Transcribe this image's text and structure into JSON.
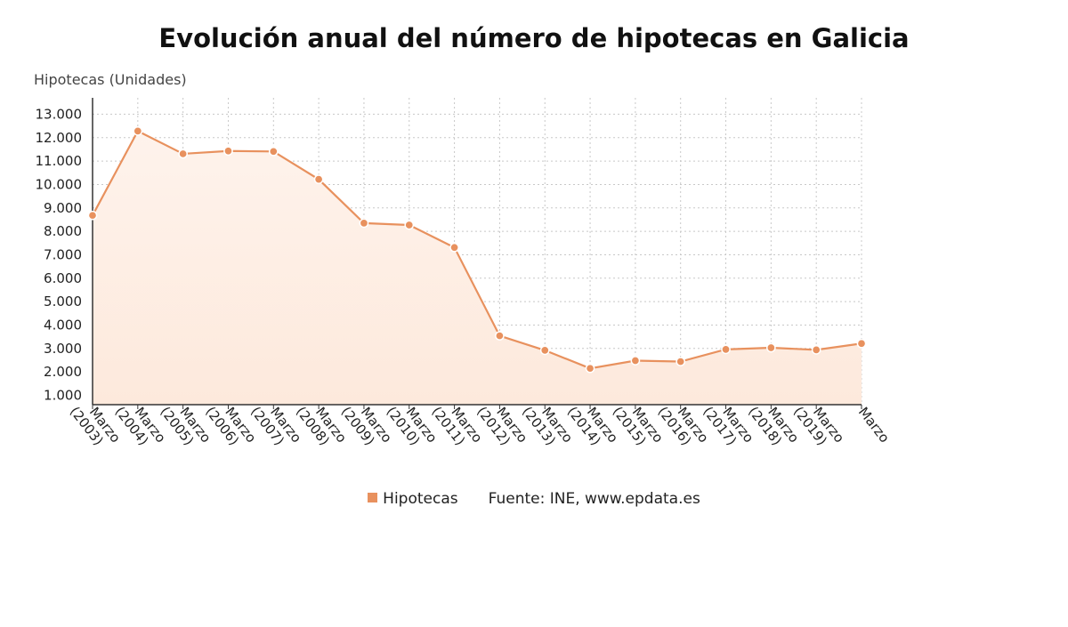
{
  "chart_data": {
    "type": "area",
    "title": "Evolución anual del número de hipotecas en Galicia",
    "ylabel": "Hipotecas (Unidades)",
    "xlabel": "",
    "categories": [
      "Marzo (2003)",
      "Marzo (2004)",
      "Marzo (2005)",
      "Marzo (2006)",
      "Marzo (2007)",
      "Marzo (2008)",
      "Marzo (2009)",
      "Marzo (2010)",
      "Marzo (2011)",
      "Marzo (2012)",
      "Marzo (2013)",
      "Marzo (2014)",
      "Marzo (2015)",
      "Marzo (2016)",
      "Marzo (2017)",
      "Marzo (2018)",
      "Marzo (2019)",
      "Marzo"
    ],
    "series": [
      {
        "name": "Hipotecas",
        "values": [
          8680,
          12280,
          11310,
          11430,
          11410,
          10220,
          8350,
          8270,
          7310,
          3540,
          2920,
          2150,
          2480,
          2440,
          2960,
          3030,
          2940,
          3210
        ],
        "color": "#e8915e"
      }
    ],
    "yticks": [
      1000,
      2000,
      3000,
      4000,
      5000,
      6000,
      7000,
      8000,
      9000,
      10000,
      11000,
      12000,
      13000
    ],
    "ytick_labels": [
      "1.000",
      "2.000",
      "3.000",
      "4.000",
      "5.000",
      "6.000",
      "7.000",
      "8.000",
      "9.000",
      "10.000",
      "11.000",
      "12.000",
      "13.000"
    ],
    "ylim": [
      600,
      13700
    ],
    "grid": true,
    "legend_position": "bottom-center",
    "fill_color": "#fde9dc"
  },
  "legend": {
    "series_label": "Hipotecas",
    "source": "Fuente: INE, www.epdata.es"
  }
}
